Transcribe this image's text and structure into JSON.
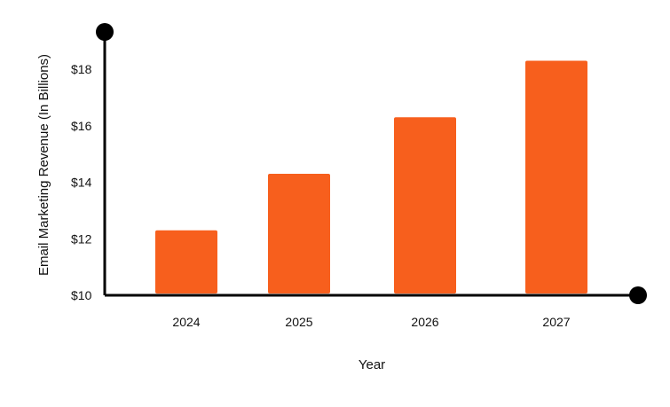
{
  "chart_data": {
    "type": "bar",
    "xlabel": "Year",
    "ylabel": "Email Marketing Revenue (In Billions)",
    "categories": [
      "2024",
      "2025",
      "2026",
      "2027"
    ],
    "values": [
      12.3,
      14.3,
      16.3,
      18.3
    ],
    "ylim": [
      10,
      19.4
    ],
    "yticks": [
      10,
      12,
      14,
      16,
      18
    ],
    "ytick_labels": [
      "$10",
      "$12",
      "$14",
      "$16",
      "$18"
    ],
    "grid": false,
    "legend": "none",
    "colors": {
      "bar": "#f75f1d",
      "axis": "#000000"
    }
  }
}
